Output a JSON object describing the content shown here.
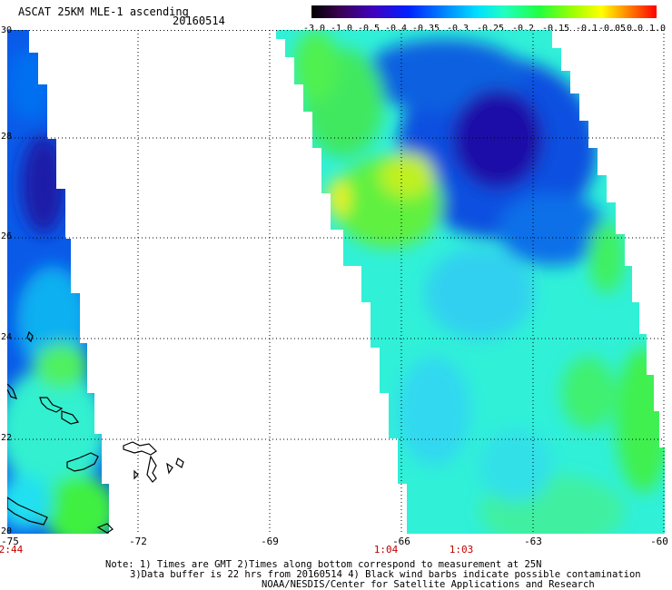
{
  "header": {
    "title": "ASCAT 25KM MLE-1 ascending",
    "date": "20160514"
  },
  "color_scale": {
    "labels": [
      "-3.0",
      "-1.0",
      "-0.5",
      "-0.4",
      "-0.35",
      "-0.3",
      "-0.25",
      "-0.2",
      "-0.15",
      "-0.1",
      "-0.05",
      "0.0",
      "1.0"
    ]
  },
  "axes": {
    "x_ticks": [
      "-75",
      "-72",
      "-69",
      "-66",
      "-63",
      "-60"
    ],
    "y_ticks": [
      "30",
      "28",
      "26",
      "24",
      "22",
      "20"
    ]
  },
  "times": [
    "2:44",
    "1:04",
    "1:03"
  ],
  "notes": {
    "line1": "Note: 1) Times are GMT 2)Times along bottom correspond to measurement at 25N",
    "line2": "3)Data buffer is 22 hrs from 20160514 4) Black wind barbs indicate possible contamination",
    "line3": "NOAA/NESDIS/Center for Satellite Applications and Research"
  },
  "colors": {
    "deep_blue": "#1010a0",
    "blue": "#0050e0",
    "cyan": "#20f0e0",
    "green": "#40f040",
    "yellow": "#f0f020",
    "red": "#ff2000"
  }
}
